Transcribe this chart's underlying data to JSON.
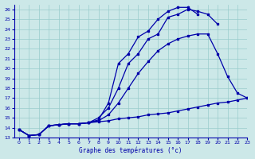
{
  "xlabel": "Graphe des températures (°c)",
  "bg_color": "#cce8e8",
  "line_color": "#0000aa",
  "grid_color": "#99cccc",
  "xlim": [
    -0.5,
    23
  ],
  "ylim": [
    13,
    26.5
  ],
  "xticks": [
    0,
    1,
    2,
    3,
    4,
    5,
    6,
    7,
    8,
    9,
    10,
    11,
    12,
    13,
    14,
    15,
    16,
    17,
    18,
    19,
    20,
    21,
    22,
    23
  ],
  "yticks": [
    13,
    14,
    15,
    16,
    17,
    18,
    19,
    20,
    21,
    22,
    23,
    24,
    25,
    26
  ],
  "series": [
    {
      "x": [
        0,
        1,
        2,
        3,
        4,
        5,
        6,
        7,
        8,
        9,
        10,
        11,
        12,
        13,
        14,
        15,
        16,
        17,
        18,
        19,
        20,
        21,
        22,
        23
      ],
      "y": [
        13.8,
        13.2,
        13.3,
        14.2,
        14.3,
        14.4,
        14.4,
        14.5,
        14.6,
        14.7,
        14.9,
        15.0,
        15.1,
        15.3,
        15.4,
        15.5,
        15.7,
        15.9,
        16.1,
        16.3,
        16.5,
        16.6,
        16.8,
        17.0
      ]
    },
    {
      "x": [
        0,
        1,
        2,
        3,
        4,
        5,
        6,
        7,
        8,
        9,
        10,
        11,
        12,
        13,
        14,
        15,
        16,
        17,
        18,
        19,
        20,
        21,
        22,
        23
      ],
      "y": [
        13.8,
        13.2,
        13.3,
        14.2,
        14.3,
        14.4,
        14.4,
        14.5,
        14.7,
        15.3,
        16.5,
        18.0,
        19.5,
        20.7,
        21.8,
        22.5,
        23.0,
        23.3,
        23.5,
        23.5,
        21.5,
        19.2,
        17.5,
        17.0
      ]
    },
    {
      "x": [
        0,
        1,
        2,
        3,
        4,
        5,
        6,
        7,
        8,
        9,
        10,
        11,
        12,
        13,
        14,
        15,
        16,
        17,
        18,
        19,
        20
      ],
      "y": [
        13.8,
        13.2,
        13.3,
        14.2,
        14.3,
        14.4,
        14.4,
        14.5,
        15.0,
        16.0,
        18.0,
        20.5,
        21.5,
        23.0,
        23.5,
        25.2,
        25.5,
        26.0,
        25.8,
        25.5,
        24.5
      ]
    },
    {
      "x": [
        0,
        1,
        2,
        3,
        4,
        5,
        6,
        7,
        8,
        9,
        10,
        11,
        12,
        13,
        14,
        15,
        16,
        17,
        18
      ],
      "y": [
        13.8,
        13.2,
        13.3,
        14.2,
        14.3,
        14.4,
        14.4,
        14.5,
        14.8,
        16.5,
        20.5,
        21.5,
        23.2,
        23.8,
        25.0,
        25.8,
        26.2,
        26.2,
        25.5
      ]
    }
  ]
}
